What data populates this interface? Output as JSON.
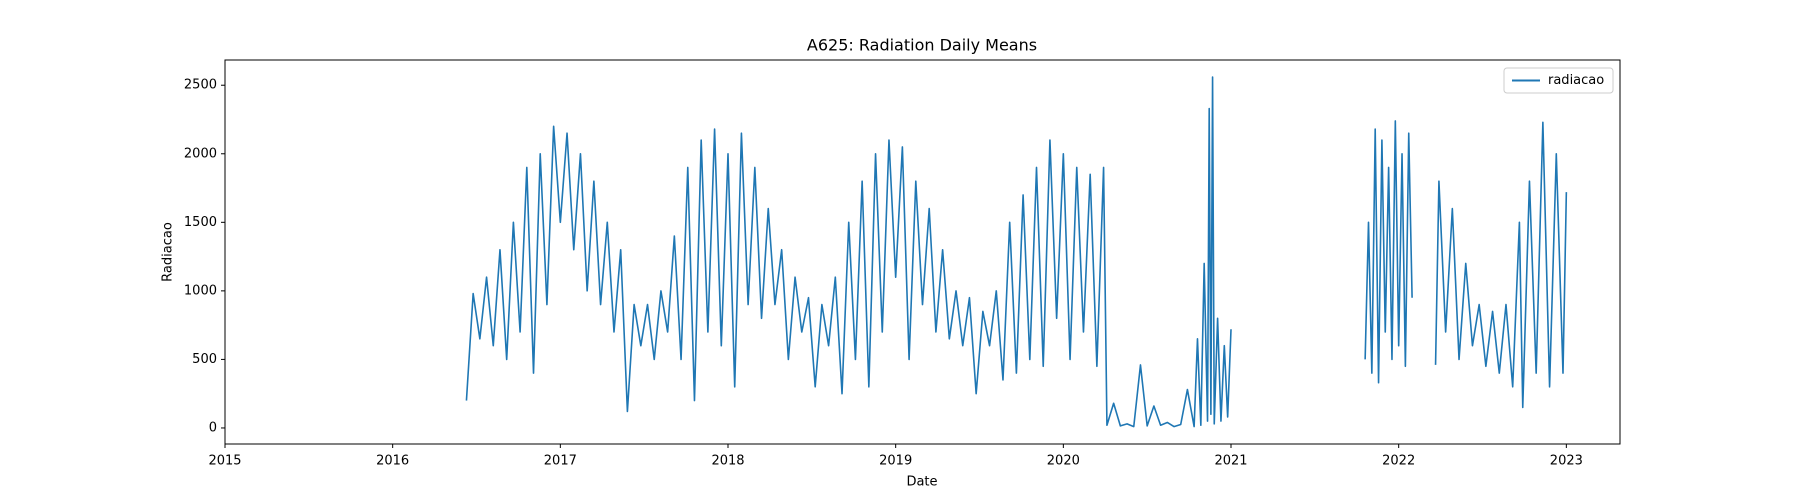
{
  "chart_data": {
    "type": "line",
    "title": "A625: Radiation Daily Means",
    "x_label": "Date",
    "y_label": "Radiacao",
    "x": [
      2016.44,
      2016.48,
      2016.52,
      2016.56,
      2016.6,
      2016.64,
      2016.68,
      2016.72,
      2016.76,
      2016.8,
      2016.84,
      2016.88,
      2016.92,
      2016.96,
      2017.0,
      2017.04,
      2017.08,
      2017.12,
      2017.16,
      2017.2,
      2017.24,
      2017.28,
      2017.32,
      2017.36,
      2017.4,
      2017.44,
      2017.48,
      2017.52,
      2017.56,
      2017.6,
      2017.64,
      2017.68,
      2017.72,
      2017.76,
      2017.8,
      2017.84,
      2017.88,
      2017.92,
      2017.96,
      2018.0,
      2018.04,
      2018.08,
      2018.12,
      2018.16,
      2018.2,
      2018.24,
      2018.28,
      2018.32,
      2018.36,
      2018.4,
      2018.44,
      2018.48,
      2018.52,
      2018.56,
      2018.6,
      2018.64,
      2018.68,
      2018.72,
      2018.76,
      2018.8,
      2018.84,
      2018.88,
      2018.92,
      2018.96,
      2019.0,
      2019.04,
      2019.08,
      2019.12,
      2019.16,
      2019.2,
      2019.24,
      2019.28,
      2019.32,
      2019.36,
      2019.4,
      2019.44,
      2019.48,
      2019.52,
      2019.56,
      2019.6,
      2019.64,
      2019.68,
      2019.72,
      2019.76,
      2019.8,
      2019.84,
      2019.88,
      2019.92,
      2019.96,
      2020.0,
      2020.04,
      2020.08,
      2020.12,
      2020.16,
      2020.2,
      2020.24,
      2020.26,
      2020.3,
      2020.34,
      2020.38,
      2020.42,
      2020.46,
      2020.5,
      2020.54,
      2020.58,
      2020.62,
      2020.66,
      2020.7,
      2020.74,
      2020.78,
      2020.8,
      2020.82,
      2020.84,
      2020.86,
      2020.87,
      2020.88,
      2020.89,
      2020.9,
      2020.92,
      2020.94,
      2020.96,
      2020.98,
      2021.0,
      2021.4,
      2021.8,
      2021.82,
      2021.84,
      2021.86,
      2021.88,
      2021.9,
      2021.92,
      2021.94,
      2021.96,
      2021.98,
      2022.0,
      2022.02,
      2022.04,
      2022.06,
      2022.08,
      2022.15,
      2022.22,
      2022.24,
      2022.28,
      2022.32,
      2022.36,
      2022.4,
      2022.44,
      2022.48,
      2022.52,
      2022.56,
      2022.6,
      2022.64,
      2022.68,
      2022.72,
      2022.74,
      2022.78,
      2022.82,
      2022.86,
      2022.9,
      2022.94,
      2022.98,
      2023.0
    ],
    "series": [
      {
        "name": "radiacao",
        "color": "#1f77b4",
        "values": [
          200,
          980,
          650,
          1100,
          600,
          1300,
          500,
          1500,
          700,
          1900,
          400,
          2000,
          900,
          2200,
          1500,
          2150,
          1300,
          2000,
          1000,
          1800,
          900,
          1500,
          700,
          1300,
          120,
          900,
          600,
          900,
          500,
          1000,
          700,
          1400,
          500,
          1900,
          200,
          2100,
          700,
          2180,
          600,
          2000,
          300,
          2150,
          900,
          1900,
          800,
          1600,
          900,
          1300,
          500,
          1100,
          700,
          950,
          300,
          900,
          600,
          1100,
          250,
          1500,
          500,
          1800,
          300,
          2000,
          700,
          2100,
          1100,
          2050,
          500,
          1800,
          900,
          1600,
          700,
          1300,
          650,
          1000,
          600,
          950,
          250,
          850,
          600,
          1000,
          350,
          1500,
          400,
          1700,
          500,
          1900,
          450,
          2100,
          800,
          2000,
          500,
          1900,
          700,
          1850,
          450,
          1900,
          20,
          180,
          15,
          30,
          10,
          460,
          15,
          160,
          20,
          40,
          10,
          25,
          280,
          10,
          650,
          20,
          1200,
          50,
          2330,
          100,
          2560,
          30,
          800,
          50,
          600,
          80,
          720,
          null,
          500,
          1500,
          400,
          2180,
          330,
          2100,
          700,
          1900,
          500,
          2240,
          600,
          2000,
          450,
          2150,
          950,
          null,
          460,
          1800,
          700,
          1600,
          500,
          1200,
          600,
          900,
          450,
          850,
          400,
          900,
          300,
          1500,
          150,
          1800,
          400,
          2230,
          300,
          2000,
          400,
          1720
        ]
      }
    ],
    "xlim": [
      2015,
      2023.32
    ],
    "xticks": [
      2015,
      2016,
      2017,
      2018,
      2019,
      2020,
      2021,
      2022,
      2023
    ],
    "ylim": [
      -117,
      2684
    ],
    "yticks": [
      0,
      500,
      1000,
      1500,
      2000,
      2500
    ],
    "legend": "upper right"
  }
}
